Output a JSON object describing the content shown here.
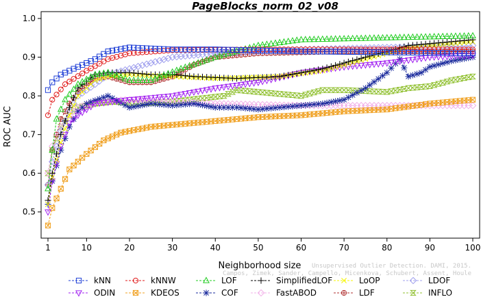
{
  "chart_data": {
    "type": "line",
    "title": "PageBlocks_norm_02_v08",
    "xlabel": "Neighborhood size",
    "ylabel": "ROC AUC",
    "xlim": [
      1,
      100
    ],
    "ylim": [
      0.45,
      1.0
    ],
    "x_ticks": [
      1,
      10,
      20,
      30,
      40,
      50,
      60,
      70,
      80,
      90,
      100
    ],
    "y_ticks": [
      0.5,
      0.6,
      0.7,
      0.8,
      0.9,
      1.0
    ],
    "grid": false,
    "legend_position": "bottom",
    "credit_lines": [
      "Unsupervised Outlier Detection. DAMI, 2015.",
      "Campos, Zimek, Sander, Campello, Micenkova, Schubert, Assent, Houle"
    ],
    "series": [
      {
        "name": "kNN",
        "color": "#1f3fd6",
        "marker": "square",
        "anchors": [
          [
            1,
            0.815
          ],
          [
            2,
            0.835
          ],
          [
            4,
            0.855
          ],
          [
            8,
            0.875
          ],
          [
            12,
            0.895
          ],
          [
            15,
            0.915
          ],
          [
            20,
            0.925
          ],
          [
            30,
            0.92
          ],
          [
            40,
            0.92
          ],
          [
            60,
            0.915
          ],
          [
            100,
            0.91
          ]
        ]
      },
      {
        "name": "kNNW",
        "color": "#e01a1a",
        "marker": "circle",
        "anchors": [
          [
            1,
            0.75
          ],
          [
            2,
            0.79
          ],
          [
            5,
            0.83
          ],
          [
            10,
            0.865
          ],
          [
            15,
            0.895
          ],
          [
            20,
            0.91
          ],
          [
            30,
            0.918
          ],
          [
            50,
            0.92
          ],
          [
            70,
            0.92
          ],
          [
            100,
            0.92
          ]
        ]
      },
      {
        "name": "LOF",
        "color": "#22cc22",
        "marker": "triangle-up",
        "anchors": [
          [
            1,
            0.56
          ],
          [
            2,
            0.66
          ],
          [
            3,
            0.74
          ],
          [
            5,
            0.79
          ],
          [
            8,
            0.83
          ],
          [
            12,
            0.855
          ],
          [
            15,
            0.86
          ],
          [
            20,
            0.84
          ],
          [
            25,
            0.84
          ],
          [
            32,
            0.87
          ],
          [
            40,
            0.9
          ],
          [
            50,
            0.93
          ],
          [
            60,
            0.945
          ],
          [
            80,
            0.95
          ],
          [
            100,
            0.955
          ]
        ]
      },
      {
        "name": "SimplifiedLOF",
        "color": "#000000",
        "marker": "plus",
        "anchors": [
          [
            1,
            0.53
          ],
          [
            2,
            0.6
          ],
          [
            4,
            0.7
          ],
          [
            6,
            0.77
          ],
          [
            8,
            0.82
          ],
          [
            12,
            0.855
          ],
          [
            15,
            0.86
          ],
          [
            20,
            0.86
          ],
          [
            25,
            0.855
          ],
          [
            30,
            0.855
          ],
          [
            35,
            0.85
          ],
          [
            45,
            0.845
          ],
          [
            55,
            0.85
          ],
          [
            65,
            0.87
          ],
          [
            75,
            0.9
          ],
          [
            85,
            0.93
          ],
          [
            100,
            0.945
          ]
        ]
      },
      {
        "name": "LoOP",
        "color": "#f5f500",
        "marker": "x",
        "anchors": [
          [
            1,
            0.52
          ],
          [
            2,
            0.59
          ],
          [
            4,
            0.68
          ],
          [
            6,
            0.75
          ],
          [
            8,
            0.8
          ],
          [
            12,
            0.84
          ],
          [
            15,
            0.85
          ],
          [
            20,
            0.855
          ],
          [
            30,
            0.85
          ],
          [
            40,
            0.845
          ],
          [
            55,
            0.85
          ],
          [
            65,
            0.865
          ],
          [
            75,
            0.895
          ],
          [
            85,
            0.925
          ],
          [
            100,
            0.94
          ]
        ]
      },
      {
        "name": "LDOF",
        "color": "#a0a0ee",
        "marker": "diamond",
        "anchors": [
          [
            1,
            0.57
          ],
          [
            2,
            0.63
          ],
          [
            4,
            0.71
          ],
          [
            6,
            0.76
          ],
          [
            8,
            0.8
          ],
          [
            12,
            0.83
          ],
          [
            15,
            0.855
          ],
          [
            20,
            0.87
          ],
          [
            25,
            0.885
          ],
          [
            30,
            0.9
          ],
          [
            40,
            0.91
          ],
          [
            50,
            0.915
          ],
          [
            60,
            0.92
          ],
          [
            80,
            0.925
          ],
          [
            100,
            0.93
          ]
        ]
      },
      {
        "name": "ODIN",
        "color": "#a020f0",
        "marker": "triangle-down",
        "anchors": [
          [
            1,
            0.5
          ],
          [
            2,
            0.58
          ],
          [
            4,
            0.67
          ],
          [
            6,
            0.73
          ],
          [
            8,
            0.75
          ],
          [
            12,
            0.78
          ],
          [
            20,
            0.79
          ],
          [
            30,
            0.8
          ],
          [
            40,
            0.82
          ],
          [
            50,
            0.835
          ],
          [
            60,
            0.86
          ],
          [
            70,
            0.875
          ],
          [
            80,
            0.885
          ],
          [
            90,
            0.9
          ],
          [
            100,
            0.905
          ]
        ]
      },
      {
        "name": "KDEOS",
        "color": "#f0a020",
        "marker": "square-x",
        "anchors": [
          [
            1,
            0.465
          ],
          [
            2,
            0.51
          ],
          [
            4,
            0.56
          ],
          [
            6,
            0.61
          ],
          [
            8,
            0.63
          ],
          [
            10,
            0.65
          ],
          [
            14,
            0.685
          ],
          [
            18,
            0.705
          ],
          [
            25,
            0.72
          ],
          [
            30,
            0.725
          ],
          [
            40,
            0.735
          ],
          [
            50,
            0.745
          ],
          [
            60,
            0.75
          ],
          [
            70,
            0.76
          ],
          [
            80,
            0.765
          ],
          [
            90,
            0.78
          ],
          [
            100,
            0.79
          ]
        ]
      },
      {
        "name": "COF",
        "color": "#1a2a9c",
        "marker": "star",
        "anchors": [
          [
            1,
            0.52
          ],
          [
            2,
            0.58
          ],
          [
            4,
            0.66
          ],
          [
            6,
            0.72
          ],
          [
            8,
            0.76
          ],
          [
            10,
            0.78
          ],
          [
            15,
            0.8
          ],
          [
            20,
            0.77
          ],
          [
            25,
            0.78
          ],
          [
            30,
            0.775
          ],
          [
            35,
            0.78
          ],
          [
            40,
            0.77
          ],
          [
            45,
            0.77
          ],
          [
            50,
            0.765
          ],
          [
            55,
            0.77
          ],
          [
            60,
            0.775
          ],
          [
            65,
            0.78
          ],
          [
            70,
            0.79
          ],
          [
            75,
            0.82
          ],
          [
            80,
            0.86
          ],
          [
            83,
            0.895
          ],
          [
            85,
            0.85
          ],
          [
            88,
            0.86
          ],
          [
            90,
            0.875
          ],
          [
            95,
            0.89
          ],
          [
            100,
            0.9
          ]
        ]
      },
      {
        "name": "FastABOD",
        "color": "#f2b0e8",
        "marker": "diamond",
        "anchors": [
          [
            1,
            0.6
          ],
          [
            2,
            0.67
          ],
          [
            4,
            0.72
          ],
          [
            6,
            0.75
          ],
          [
            8,
            0.77
          ],
          [
            12,
            0.785
          ],
          [
            20,
            0.79
          ],
          [
            30,
            0.785
          ],
          [
            40,
            0.78
          ],
          [
            60,
            0.775
          ],
          [
            80,
            0.775
          ],
          [
            100,
            0.775
          ]
        ]
      },
      {
        "name": "LDF",
        "color": "#b03030",
        "marker": "circle-plus",
        "anchors": [
          [
            1,
            0.57
          ],
          [
            2,
            0.66
          ],
          [
            4,
            0.74
          ],
          [
            6,
            0.78
          ],
          [
            8,
            0.81
          ],
          [
            12,
            0.845
          ],
          [
            15,
            0.85
          ],
          [
            20,
            0.835
          ],
          [
            25,
            0.835
          ],
          [
            30,
            0.85
          ],
          [
            35,
            0.88
          ],
          [
            40,
            0.9
          ],
          [
            50,
            0.91
          ],
          [
            70,
            0.915
          ],
          [
            100,
            0.915
          ]
        ]
      },
      {
        "name": "INFLO",
        "color": "#90c030",
        "marker": "hourglass",
        "anchors": [
          [
            1,
            0.6
          ],
          [
            2,
            0.66
          ],
          [
            4,
            0.72
          ],
          [
            6,
            0.75
          ],
          [
            8,
            0.77
          ],
          [
            12,
            0.78
          ],
          [
            16,
            0.785
          ],
          [
            22,
            0.78
          ],
          [
            30,
            0.785
          ],
          [
            38,
            0.795
          ],
          [
            42,
            0.8
          ],
          [
            45,
            0.815
          ],
          [
            50,
            0.81
          ],
          [
            60,
            0.8
          ],
          [
            65,
            0.815
          ],
          [
            70,
            0.815
          ],
          [
            80,
            0.81
          ],
          [
            85,
            0.82
          ],
          [
            90,
            0.825
          ],
          [
            95,
            0.84
          ],
          [
            100,
            0.85
          ]
        ]
      }
    ]
  }
}
